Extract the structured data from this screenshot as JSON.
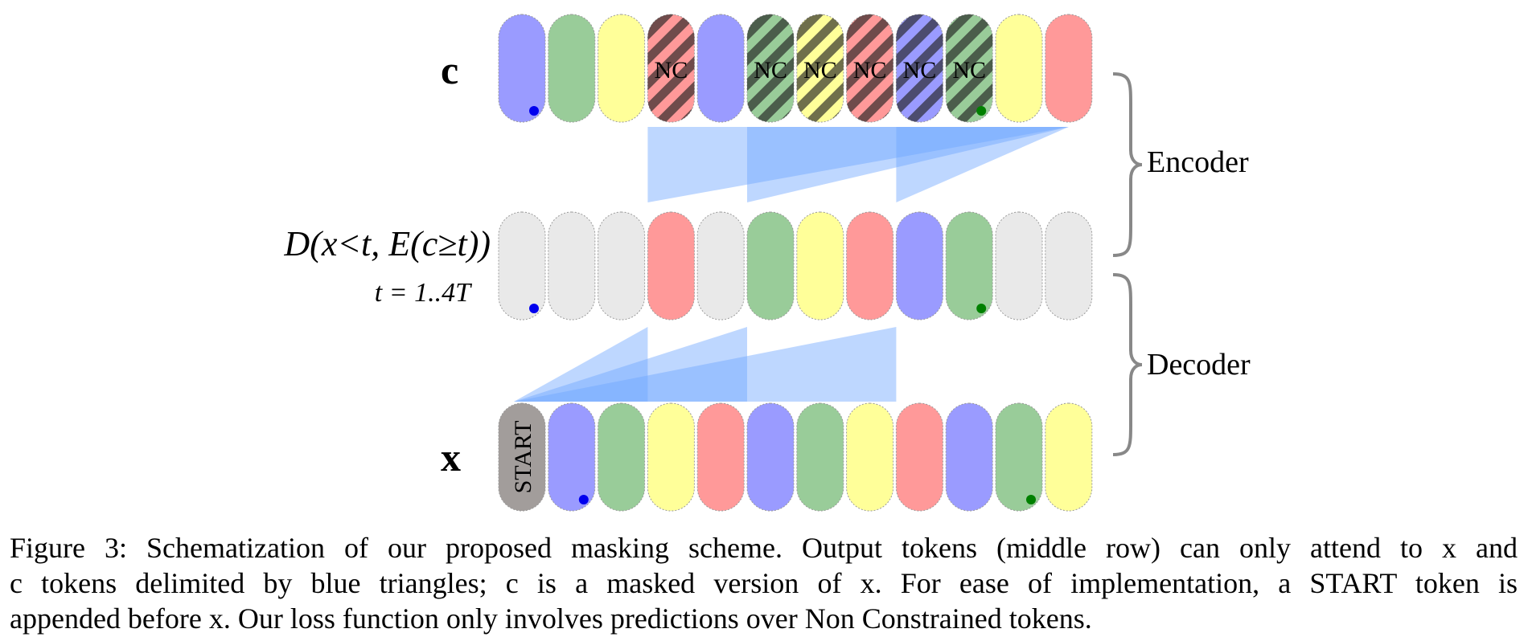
{
  "figure": {
    "rows": {
      "c": {
        "label": "c",
        "tokens": [
          {
            "color": "blue"
          },
          {
            "color": "green"
          },
          {
            "color": "yellow"
          },
          {
            "color": "red",
            "nc": true
          },
          {
            "color": "blue"
          },
          {
            "color": "green",
            "nc": true
          },
          {
            "color": "yellow",
            "nc": true
          },
          {
            "color": "red",
            "nc": true
          },
          {
            "color": "blue",
            "nc": true
          },
          {
            "color": "green",
            "nc": true
          },
          {
            "color": "yellow"
          },
          {
            "color": "red"
          }
        ],
        "dots": [
          {
            "index": 0,
            "color": "#0000ee"
          },
          {
            "index": 9,
            "color": "#008000"
          }
        ]
      },
      "d": {
        "label_line1": "D(x<t, E(c≥t))",
        "label_line2": "t = 1..4T",
        "tokens": [
          {
            "color": "gray"
          },
          {
            "color": "gray"
          },
          {
            "color": "gray"
          },
          {
            "color": "red"
          },
          {
            "color": "gray"
          },
          {
            "color": "green"
          },
          {
            "color": "yellow"
          },
          {
            "color": "red"
          },
          {
            "color": "blue"
          },
          {
            "color": "green"
          },
          {
            "color": "gray"
          },
          {
            "color": "gray"
          }
        ],
        "dots": [
          {
            "index": 0,
            "color": "#0000ee"
          },
          {
            "index": 9,
            "color": "#008000"
          }
        ]
      },
      "x": {
        "label": "x",
        "start_label": "START",
        "tokens": [
          {
            "color": "start"
          },
          {
            "color": "blue"
          },
          {
            "color": "green"
          },
          {
            "color": "yellow"
          },
          {
            "color": "red"
          },
          {
            "color": "blue"
          },
          {
            "color": "green"
          },
          {
            "color": "yellow"
          },
          {
            "color": "red"
          },
          {
            "color": "blue"
          },
          {
            "color": "green"
          },
          {
            "color": "yellow"
          }
        ],
        "dots": [
          {
            "index": 1,
            "color": "#0000ee"
          },
          {
            "index": 10,
            "color": "#008000"
          }
        ]
      }
    },
    "nc_label": "NC",
    "encoder_label": "Encoder",
    "decoder_label": "Decoder",
    "palette": {
      "blue": "#9a9bff",
      "green": "#99cc99",
      "yellow": "#ffff99",
      "red": "#ff9999",
      "gray": "#e9e9e9",
      "start": "#a29d9b",
      "triangle": "#6fa6ff"
    }
  },
  "caption": {
    "line1": "Figure 3: Schematization of our proposed masking scheme. Output tokens (middle row) can only attend to x and",
    "line2": "c tokens delimited by blue triangles; c is a masked version of x. For ease of implementation, a START token is",
    "line3": "appended before x. Our loss function only involves predictions over Non Constrained tokens."
  }
}
